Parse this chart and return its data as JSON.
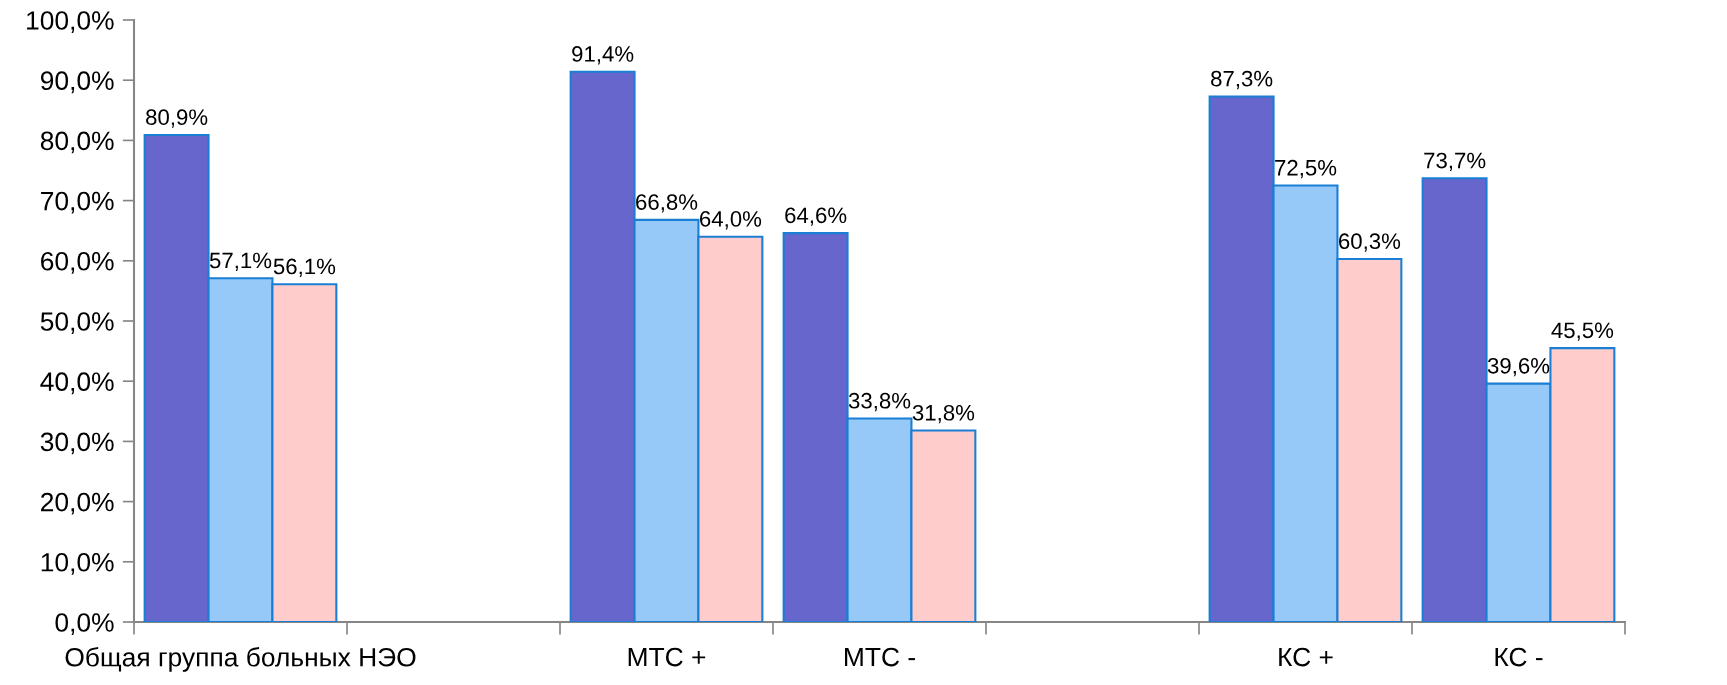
{
  "chart_data": {
    "type": "bar",
    "categories": [
      "Общая группа больных НЭО",
      null,
      "МТС +",
      "МТС -",
      null,
      "КС +",
      "КС -"
    ],
    "series": [
      {
        "color": "#6666cc",
        "values": [
          80.9,
          null,
          91.4,
          64.6,
          null,
          87.3,
          73.7
        ],
        "value_labels": [
          "80,9%",
          null,
          "91,4%",
          "64,6%",
          null,
          "87,3%",
          "73,7%"
        ]
      },
      {
        "color": "#96c8f8",
        "values": [
          57.1,
          null,
          66.8,
          33.8,
          null,
          72.5,
          39.6
        ],
        "value_labels": [
          "57,1%",
          null,
          "66,8%",
          "33,8%",
          null,
          "72,5%",
          "39,6%"
        ]
      },
      {
        "color": "#ffcccc",
        "values": [
          56.1,
          null,
          64.0,
          31.8,
          null,
          60.3,
          45.5
        ],
        "value_labels": [
          "56,1%",
          null,
          "64,0%",
          "31,8%",
          null,
          "60,3%",
          "45,5%"
        ]
      }
    ],
    "ylim": [
      0,
      100
    ],
    "yticks": [
      {
        "value": 0,
        "label": "0,0%"
      },
      {
        "value": 10,
        "label": "10,0%"
      },
      {
        "value": 20,
        "label": "20,0%"
      },
      {
        "value": 30,
        "label": "30,0%"
      },
      {
        "value": 40,
        "label": "40,0%"
      },
      {
        "value": 50,
        "label": "50,0%"
      },
      {
        "value": 60,
        "label": "60,0%"
      },
      {
        "value": 70,
        "label": "70,0%"
      },
      {
        "value": 80,
        "label": "80,0%"
      },
      {
        "value": 90,
        "label": "90,0%"
      },
      {
        "value": 100,
        "label": "100,0%"
      }
    ]
  }
}
